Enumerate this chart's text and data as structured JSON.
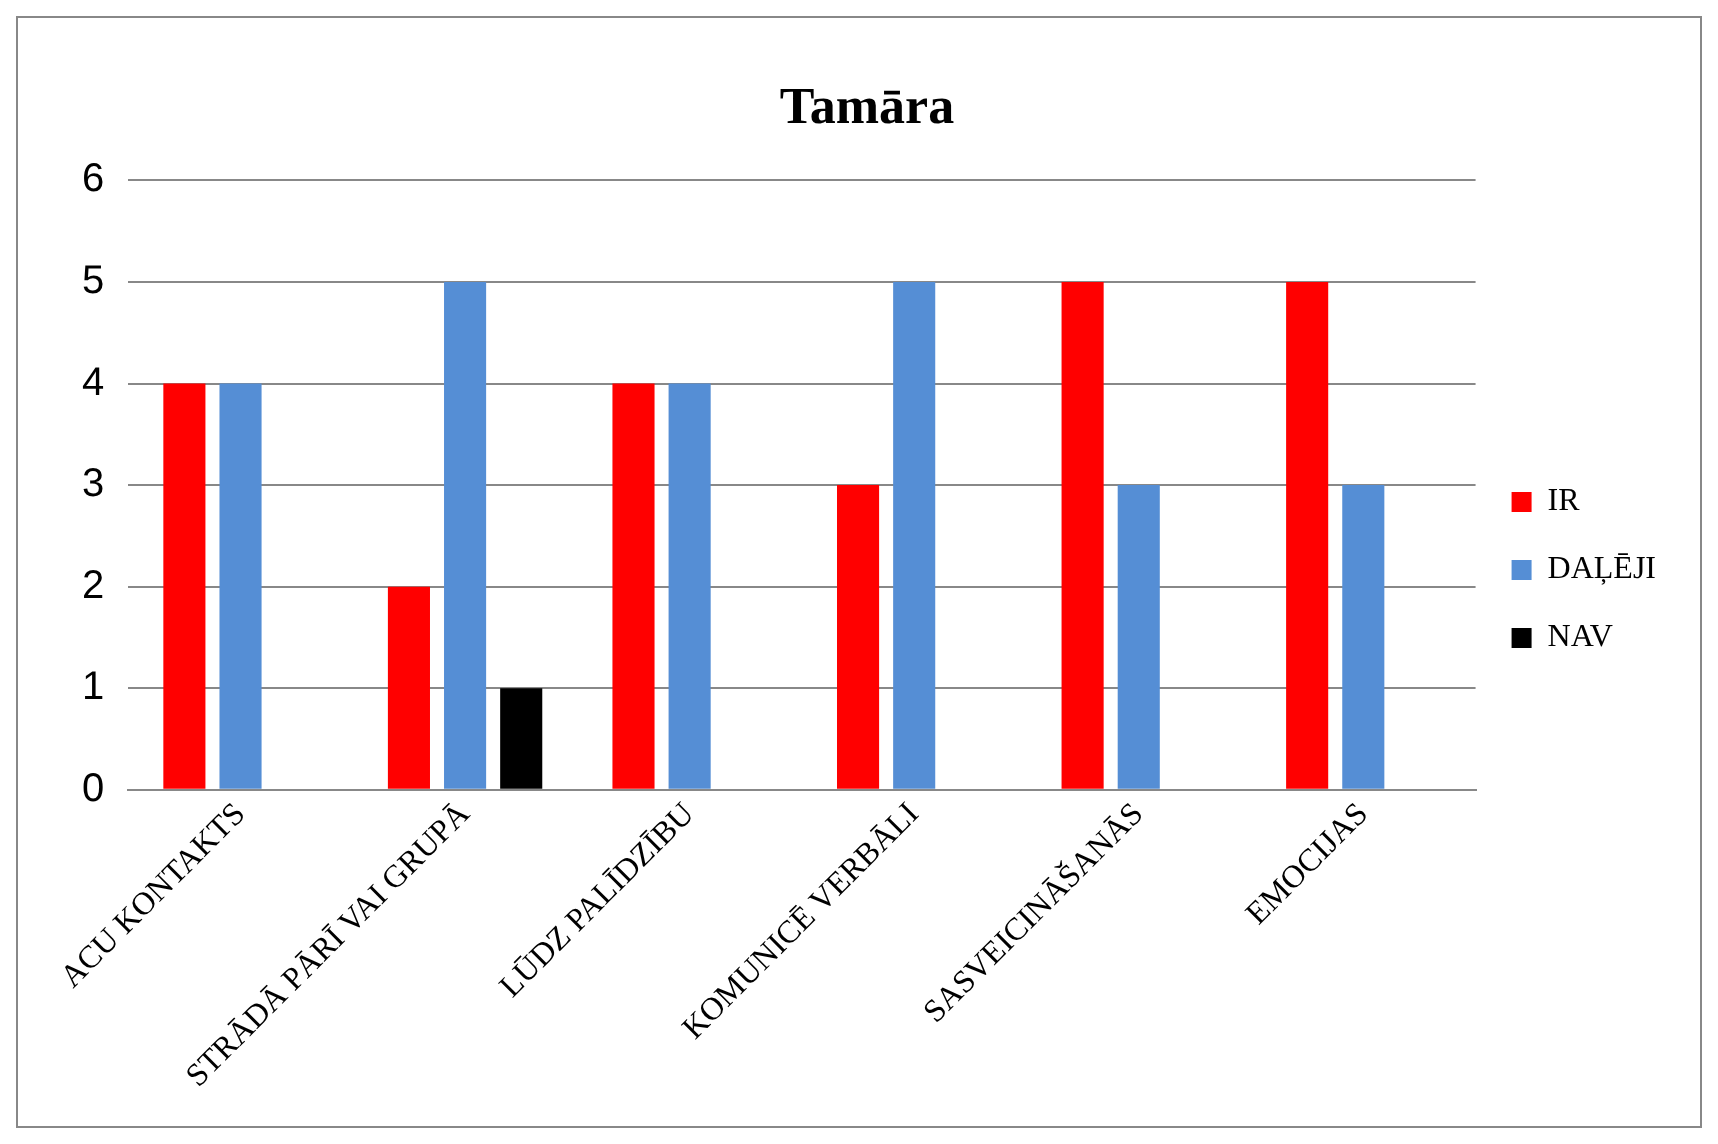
{
  "chart_data": {
    "type": "bar",
    "title": "Tamāra",
    "categories": [
      "ACU KONTAKTS",
      "STRĀDĀ PĀRĪ VAI GRUPĀ",
      "LŪDZ PALĪDZĪBU",
      "KOMUNICĒ VERBĀLI",
      "SASVEICINĀŠANĀS",
      "EMOCIJAS"
    ],
    "series": [
      {
        "name": "IR",
        "color": "#ff0000",
        "values": [
          4,
          2,
          4,
          3,
          5,
          5
        ]
      },
      {
        "name": "DAĻĒJI",
        "color": "#558ed5",
        "values": [
          4,
          5,
          4,
          5,
          3,
          3
        ]
      },
      {
        "name": "NAV",
        "color": "#000000",
        "values": [
          null,
          1,
          null,
          null,
          null,
          null
        ]
      }
    ],
    "ylim": [
      0,
      6
    ],
    "yticks": [
      0,
      1,
      2,
      3,
      4,
      5,
      6
    ],
    "grid": "y",
    "legend": "right"
  }
}
